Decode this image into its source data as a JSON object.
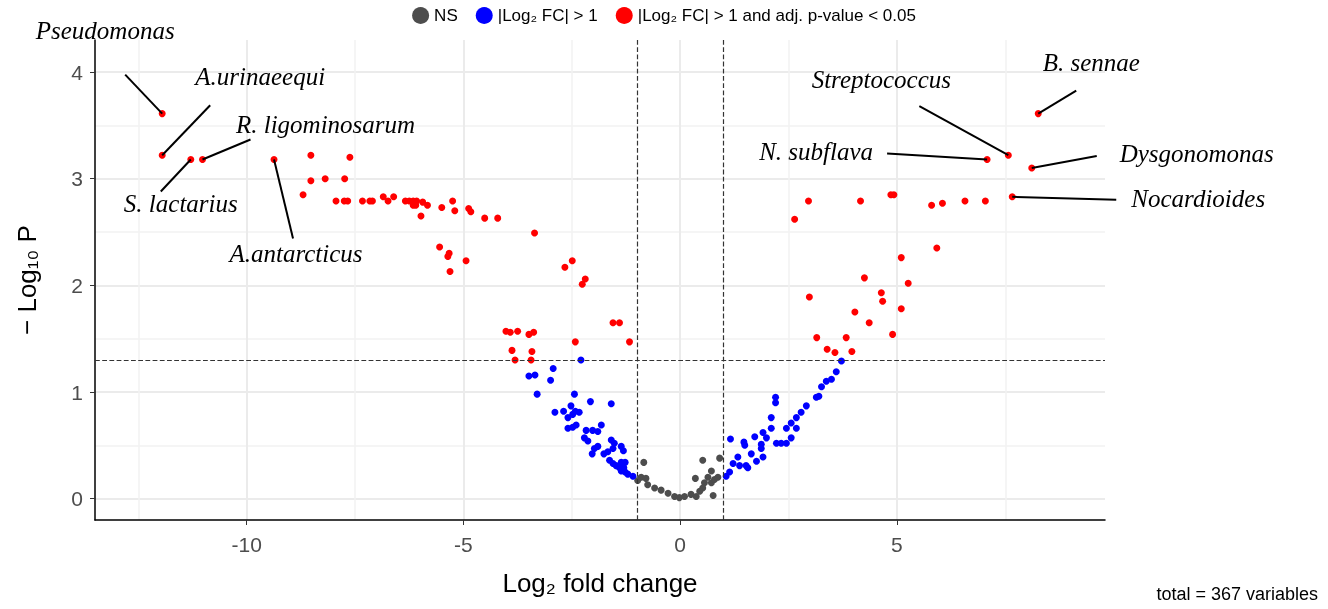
{
  "chart_data": {
    "type": "scatter",
    "xlabel": "Log₂ fold change",
    "ylabel": "− Log₁₀ P",
    "xlim": [
      -13.5,
      9.8
    ],
    "ylim": [
      -0.2,
      4.3
    ],
    "xticks": [
      -10,
      -5,
      0,
      5
    ],
    "yticks": [
      0,
      1,
      2,
      3,
      4
    ],
    "grid": true,
    "legend": "top",
    "marker": "circle",
    "series": [
      {
        "name": "NS",
        "color": "#4d4d4d",
        "x": [
          -0.84,
          -0.9,
          -0.79,
          -0.98,
          -0.75,
          -0.59,
          -0.44,
          -0.28,
          -0.13,
          -0.02,
          0.1,
          0.25,
          0.37,
          0.35,
          0.52,
          0.91,
          0.72,
          0.64,
          0.56,
          0.52,
          0.72,
          0.79,
          0.87,
          0.76,
          0.45
        ],
        "values": [
          0.34,
          0.2,
          0.19,
          0.17,
          0.13,
          0.1,
          0.08,
          0.05,
          0.02,
          0.01,
          0.02,
          0.04,
          0.02,
          0.19,
          0.36,
          0.38,
          0.26,
          0.2,
          0.15,
          0.1,
          0.15,
          0.18,
          0.2,
          0.03,
          0.07
        ]
      },
      {
        "name": "|Log₂ FC| > 1",
        "color": "#0000ff",
        "x": [
          -2.29,
          -2.93,
          -3.49,
          -3.35,
          -2.99,
          -3.3,
          -2.44,
          -2.07,
          -1.59,
          -2.89,
          -2.69,
          -2.52,
          -2.42,
          -2.33,
          -2.59,
          -2.48,
          -2.59,
          -2.48,
          -2.4,
          -2.17,
          -2.02,
          -1.82,
          -1.9,
          -2.21,
          -2.13,
          -1.98,
          -1.9,
          -2.03,
          -1.59,
          -1.52,
          -1.36,
          -1.31,
          -1.76,
          -1.67,
          -1.55,
          -1.63,
          -1.55,
          -1.48,
          -1.4,
          -1.3,
          -1.36,
          -1.27,
          -1.21,
          -1.09,
          -1.36,
          -1.27,
          1.16,
          1.47,
          1.49,
          1.72,
          1.91,
          1.87,
          1.91,
          1.76,
          1.64,
          1.56,
          1.33,
          1.22,
          1.14,
          1.06,
          1.37,
          1.52,
          2.1,
          2.2,
          2.2,
          2.45,
          2.56,
          2.68,
          2.79,
          2.91,
          2.56,
          2.33,
          3.14,
          3.26,
          3.37,
          3.49,
          3.6,
          3.72,
          3.2,
          2.22,
          1.99,
          1.87,
          2.45,
          2.1,
          2.68
        ],
        "values": [
          1.3,
          1.22,
          1.15,
          1.16,
          1.11,
          0.98,
          0.98,
          0.91,
          0.89,
          0.81,
          0.82,
          0.87,
          0.82,
          0.81,
          0.76,
          0.79,
          0.66,
          0.67,
          0.69,
          0.64,
          0.64,
          0.69,
          0.63,
          0.57,
          0.54,
          0.47,
          0.49,
          0.42,
          0.55,
          0.52,
          0.49,
          0.45,
          0.42,
          0.44,
          0.47,
          0.36,
          0.33,
          0.31,
          0.29,
          0.29,
          0.26,
          0.25,
          0.23,
          0.21,
          0.34,
          0.34,
          0.56,
          0.53,
          0.5,
          0.58,
          0.62,
          0.51,
          0.39,
          0.35,
          0.42,
          0.29,
          0.39,
          0.33,
          0.25,
          0.21,
          0.31,
          0.31,
          0.76,
          0.9,
          0.95,
          0.66,
          0.71,
          0.76,
          0.81,
          0.87,
          0.57,
          0.52,
          0.95,
          1.05,
          1.1,
          1.12,
          1.19,
          1.29,
          0.96,
          0.52,
          0.57,
          0.47,
          0.52,
          0.66,
          0.66
        ]
      },
      {
        "name": "|Log₂ FC| > 1 and adj. p-value < 0.05",
        "color": "#ff0000",
        "x": [
          -11.95,
          -11.95,
          -11.29,
          -11.02,
          -9.37,
          -8.52,
          -7.62,
          -8.52,
          -8.19,
          -7.74,
          -8.7,
          -7.94,
          -7.75,
          -7.67,
          -7.33,
          -7.16,
          -7.1,
          -6.85,
          -6.74,
          -6.61,
          -6.34,
          -6.25,
          -6.16,
          -6.08,
          -6.16,
          -6.1,
          -5.94,
          -5.83,
          -5.98,
          -5.5,
          -5.25,
          -5.2,
          -4.88,
          -4.83,
          -4.51,
          -4.21,
          -3.36,
          -5.55,
          -5.33,
          -5.36,
          -4.94,
          -5.31,
          -2.66,
          -2.49,
          -2.19,
          -2.26,
          -1.55,
          -1.4,
          -1.17,
          -4.02,
          -3.92,
          -3.75,
          -3.49,
          -3.38,
          -3.88,
          -3.42,
          -3.81,
          -3.44,
          -2.42,
          8.26,
          7.57,
          7.08,
          8.11,
          7.66,
          2.96,
          2.64,
          4.16,
          4.86,
          4.93,
          5.8,
          6.05,
          6.57,
          7.04,
          5.92,
          5.1,
          5.26,
          4.25,
          2.98,
          4.64,
          4.67,
          4.03,
          4.36,
          5.1,
          4.9,
          3.15,
          3.83,
          3.39,
          3.57,
          3.96
        ],
        "values": [
          3.61,
          3.22,
          3.18,
          3.18,
          3.18,
          3.22,
          3.2,
          2.98,
          3.0,
          3.0,
          2.85,
          2.79,
          2.79,
          2.79,
          2.79,
          2.79,
          2.79,
          2.83,
          2.79,
          2.83,
          2.79,
          2.79,
          2.79,
          2.79,
          2.75,
          2.75,
          2.78,
          2.75,
          2.65,
          2.73,
          2.79,
          2.7,
          2.72,
          2.69,
          2.63,
          2.63,
          2.49,
          2.36,
          2.3,
          2.27,
          2.23,
          2.13,
          2.17,
          2.23,
          2.06,
          2.01,
          1.65,
          1.65,
          1.47,
          1.57,
          1.56,
          1.57,
          1.54,
          1.56,
          1.39,
          1.38,
          1.3,
          1.3,
          1.47,
          3.61,
          3.22,
          3.18,
          3.1,
          2.83,
          2.79,
          2.62,
          2.79,
          2.85,
          2.85,
          2.75,
          2.77,
          2.79,
          2.79,
          2.35,
          2.26,
          2.02,
          2.07,
          1.89,
          1.93,
          1.85,
          1.75,
          1.65,
          1.78,
          1.54,
          1.51,
          1.51,
          1.4,
          1.37,
          1.38
        ]
      }
    ],
    "ref_lines": [
      {
        "axis": "x",
        "value": -1,
        "line_style": "dashed",
        "color": "#333333"
      },
      {
        "axis": "x",
        "value": 1,
        "line_style": "dashed",
        "color": "#333333"
      },
      {
        "axis": "y",
        "value": 1.3,
        "line_style": "dashed",
        "color": "#333333"
      }
    ],
    "annotations": [
      {
        "text": "Pseudomonas",
        "x": -11.95,
        "y": 3.61
      },
      {
        "text": "A.urinaeequi",
        "x": -11.95,
        "y": 3.22
      },
      {
        "text": "S. lactarius",
        "x": -11.29,
        "y": 3.18
      },
      {
        "text": "R. ligominosarum",
        "x": -11.02,
        "y": 3.18
      },
      {
        "text": "A.antarcticus",
        "x": -9.37,
        "y": 3.18
      },
      {
        "text": "B. sennae",
        "x": 8.26,
        "y": 3.61
      },
      {
        "text": "Streptococcus",
        "x": 7.57,
        "y": 3.22
      },
      {
        "text": "N. subflava",
        "x": 7.08,
        "y": 3.18
      },
      {
        "text": "Dysgonomonas",
        "x": 8.11,
        "y": 3.1
      },
      {
        "text": "Nocardioides",
        "x": 7.66,
        "y": 2.83
      },
      "total = 367 variables"
    ]
  }
}
